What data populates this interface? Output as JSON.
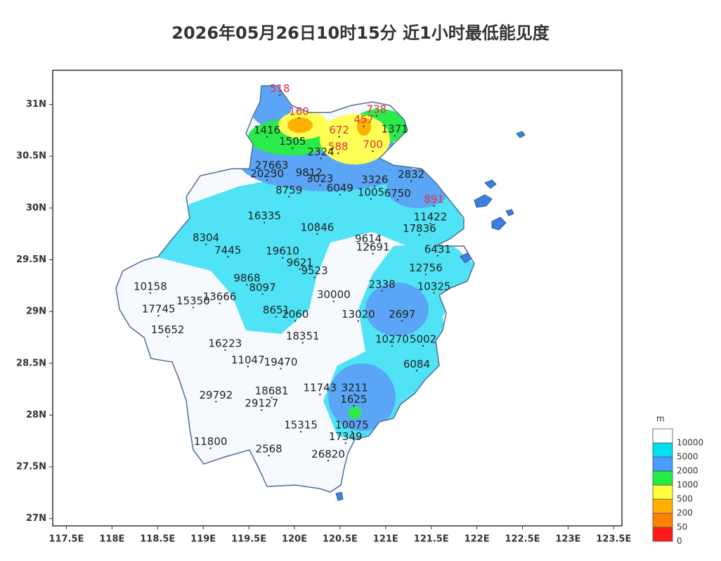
{
  "map": {
    "title": "2026年05月26日10时15分 近1小时最低能见度",
    "xlim": [
      117.35,
      123.59
    ],
    "ylim": [
      26.93,
      31.33
    ],
    "xticks": [
      {
        "value": 117.5,
        "label": "117.5E"
      },
      {
        "value": 118,
        "label": "118E"
      },
      {
        "value": 118.5,
        "label": "118.5E"
      },
      {
        "value": 119,
        "label": "119E"
      },
      {
        "value": 119.5,
        "label": "119.5E"
      },
      {
        "value": 120,
        "label": "120E"
      },
      {
        "value": 120.5,
        "label": "120.5E"
      },
      {
        "value": 121,
        "label": "121E"
      },
      {
        "value": 121.5,
        "label": "121.5E"
      },
      {
        "value": 122,
        "label": "122E"
      },
      {
        "value": 122.5,
        "label": "122.5E"
      },
      {
        "value": 123,
        "label": "123E"
      },
      {
        "value": 123.5,
        "label": "123.5E"
      }
    ],
    "yticks": [
      {
        "value": 27,
        "label": "27N"
      },
      {
        "value": 27.5,
        "label": "27.5N"
      },
      {
        "value": 28,
        "label": "28N"
      },
      {
        "value": 28.5,
        "label": "28.5N"
      },
      {
        "value": 29,
        "label": "29N"
      },
      {
        "value": 29.5,
        "label": "29.5N"
      },
      {
        "value": 30,
        "label": "30N"
      },
      {
        "value": 30.5,
        "label": "30.5N"
      },
      {
        "value": 31,
        "label": "31N"
      }
    ],
    "legend": {
      "unit": "m",
      "levels": [
        0,
        50,
        200,
        500,
        1000,
        2000,
        5000,
        10000
      ],
      "colors": [
        "#ff1a1a",
        "#ff7f00",
        "#ffb000",
        "#ffff40",
        "#22ee44",
        "#4a9cff",
        "#00e0f0",
        "#ffffff"
      ]
    },
    "stations": [
      {
        "value": 518,
        "lon": 119.84,
        "lat": 31.15
      },
      {
        "value": 160,
        "lon": 120.05,
        "lat": 30.93
      },
      {
        "value": 738,
        "lon": 120.9,
        "lat": 30.95
      },
      {
        "value": 457,
        "lon": 120.76,
        "lat": 30.85
      },
      {
        "value": 1416,
        "lon": 119.7,
        "lat": 30.75
      },
      {
        "value": 672,
        "lon": 120.49,
        "lat": 30.75
      },
      {
        "value": 1371,
        "lon": 121.1,
        "lat": 30.76
      },
      {
        "value": 1505,
        "lon": 119.98,
        "lat": 30.64
      },
      {
        "value": 588,
        "lon": 120.48,
        "lat": 30.59
      },
      {
        "value": 700,
        "lon": 120.86,
        "lat": 30.61
      },
      {
        "value": 2324,
        "lon": 120.29,
        "lat": 30.54
      },
      {
        "value": 27663,
        "lon": 119.75,
        "lat": 30.41
      },
      {
        "value": 9812,
        "lon": 120.16,
        "lat": 30.34
      },
      {
        "value": 20230,
        "lon": 119.7,
        "lat": 30.33
      },
      {
        "value": 3023,
        "lon": 120.28,
        "lat": 30.28
      },
      {
        "value": 3326,
        "lon": 120.88,
        "lat": 30.27
      },
      {
        "value": 2832,
        "lon": 121.28,
        "lat": 30.32
      },
      {
        "value": 8759,
        "lon": 119.94,
        "lat": 30.17
      },
      {
        "value": 6049,
        "lon": 120.5,
        "lat": 30.19
      },
      {
        "value": 1005,
        "lon": 120.84,
        "lat": 30.15
      },
      {
        "value": 6750,
        "lon": 121.13,
        "lat": 30.14
      },
      {
        "value": 891,
        "lon": 121.53,
        "lat": 30.08
      },
      {
        "value": 16335,
        "lon": 119.67,
        "lat": 29.92
      },
      {
        "value": 11422,
        "lon": 121.49,
        "lat": 29.91
      },
      {
        "value": 10846,
        "lon": 120.25,
        "lat": 29.81
      },
      {
        "value": 17836,
        "lon": 121.37,
        "lat": 29.8
      },
      {
        "value": 8304,
        "lon": 119.03,
        "lat": 29.71
      },
      {
        "value": 9614,
        "lon": 120.81,
        "lat": 29.7
      },
      {
        "value": 12691,
        "lon": 120.86,
        "lat": 29.62
      },
      {
        "value": 6431,
        "lon": 121.57,
        "lat": 29.6
      },
      {
        "value": 7445,
        "lon": 119.27,
        "lat": 29.59
      },
      {
        "value": 19610,
        "lon": 119.87,
        "lat": 29.58
      },
      {
        "value": 9621,
        "lon": 120.06,
        "lat": 29.47
      },
      {
        "value": 12756,
        "lon": 121.44,
        "lat": 29.42
      },
      {
        "value": 9523,
        "lon": 120.22,
        "lat": 29.39
      },
      {
        "value": 9868,
        "lon": 119.48,
        "lat": 29.32
      },
      {
        "value": 10158,
        "lon": 118.42,
        "lat": 29.24
      },
      {
        "value": 8097,
        "lon": 119.65,
        "lat": 29.23
      },
      {
        "value": 2338,
        "lon": 120.96,
        "lat": 29.26
      },
      {
        "value": 10325,
        "lon": 121.53,
        "lat": 29.24
      },
      {
        "value": 13666,
        "lon": 119.18,
        "lat": 29.14
      },
      {
        "value": 30000,
        "lon": 120.43,
        "lat": 29.16
      },
      {
        "value": 15350,
        "lon": 118.89,
        "lat": 29.1
      },
      {
        "value": 17745,
        "lon": 118.51,
        "lat": 29.02
      },
      {
        "value": 8651,
        "lon": 119.8,
        "lat": 29.01
      },
      {
        "value": 2060,
        "lon": 120.01,
        "lat": 28.97
      },
      {
        "value": 13020,
        "lon": 120.7,
        "lat": 28.97
      },
      {
        "value": 2697,
        "lon": 121.18,
        "lat": 28.97
      },
      {
        "value": 15652,
        "lon": 118.61,
        "lat": 28.82
      },
      {
        "value": 18351,
        "lon": 120.09,
        "lat": 28.76
      },
      {
        "value": 10270,
        "lon": 121.07,
        "lat": 28.73
      },
      {
        "value": 5002,
        "lon": 121.41,
        "lat": 28.73
      },
      {
        "value": 16223,
        "lon": 119.24,
        "lat": 28.69
      },
      {
        "value": 11047,
        "lon": 119.49,
        "lat": 28.53
      },
      {
        "value": 19470,
        "lon": 119.85,
        "lat": 28.51
      },
      {
        "value": 6084,
        "lon": 121.34,
        "lat": 28.49
      },
      {
        "value": 11743,
        "lon": 120.28,
        "lat": 28.26
      },
      {
        "value": 3211,
        "lon": 120.66,
        "lat": 28.26
      },
      {
        "value": 29792,
        "lon": 119.14,
        "lat": 28.19
      },
      {
        "value": 18681,
        "lon": 119.75,
        "lat": 28.23
      },
      {
        "value": 1625,
        "lon": 120.65,
        "lat": 28.15
      },
      {
        "value": 29127,
        "lon": 119.64,
        "lat": 28.11
      },
      {
        "value": 15315,
        "lon": 120.07,
        "lat": 27.9
      },
      {
        "value": 10075,
        "lon": 120.63,
        "lat": 27.9
      },
      {
        "value": 17349,
        "lon": 120.56,
        "lat": 27.79
      },
      {
        "value": 11800,
        "lon": 119.08,
        "lat": 27.74
      },
      {
        "value": 2568,
        "lon": 119.72,
        "lat": 27.67
      },
      {
        "value": 26820,
        "lon": 120.37,
        "lat": 27.62
      }
    ]
  }
}
